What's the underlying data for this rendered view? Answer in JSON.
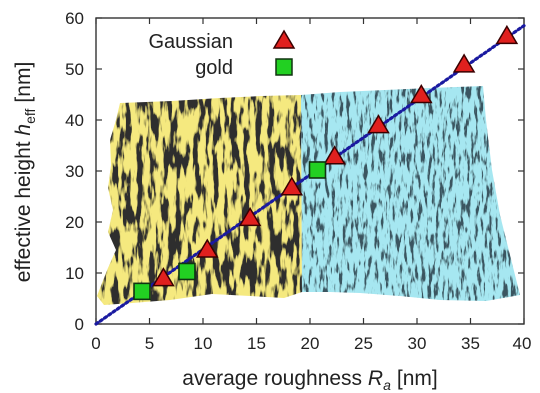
{
  "chart_data": {
    "type": "scatter",
    "title": "",
    "xlabel": "average roughness",
    "xlabel_symbol": "R",
    "xlabel_sub": "a",
    "xlabel_unit": "[nm]",
    "ylabel": "effective height",
    "ylabel_symbol": "h",
    "ylabel_sub": "eff",
    "ylabel_unit": "[nm]",
    "xlim": [
      0,
      40
    ],
    "ylim": [
      0,
      60
    ],
    "xticks": [
      "0",
      "5",
      "10",
      "15",
      "20",
      "25",
      "30",
      "35",
      "40"
    ],
    "yticks": [
      "0",
      "10",
      "20",
      "30",
      "40",
      "50",
      "60"
    ],
    "grid": false,
    "legend_position": "top-left",
    "series": [
      {
        "name": "Gaussian",
        "marker": "triangle",
        "color": "#e0201e",
        "x": [
          6.3,
          10.4,
          14.4,
          18.3,
          22.3,
          26.4,
          30.4,
          34.4,
          38.4
        ],
        "y": [
          8.8,
          14.4,
          20.6,
          26.6,
          32.7,
          38.8,
          44.7,
          50.7,
          56.3
        ]
      },
      {
        "name": "gold",
        "marker": "square",
        "color": "#22d022",
        "x": [
          4.3,
          8.5,
          20.7
        ],
        "y": [
          6.4,
          10.3,
          30.2
        ]
      }
    ],
    "fit_line": {
      "color": "#1a1aa0",
      "style": "dotted",
      "x": [
        0,
        40
      ],
      "y": [
        0,
        58.5
      ]
    },
    "background_colors": {
      "left_surface": "#e7cf36",
      "right_surface": "#5cc9df",
      "dark": "#2e2e2e"
    }
  }
}
